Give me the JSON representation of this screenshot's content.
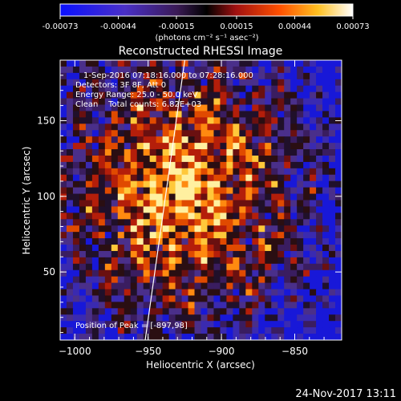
{
  "chart_data": {
    "type": "heatmap",
    "title": "Reconstructed RHESSI Image",
    "xlabel": "Heliocentric X (arcsec)",
    "ylabel": "Heliocentric Y (arcsec)",
    "xlim": [
      -1010,
      -818
    ],
    "ylim": [
      5,
      190
    ],
    "x_ticks": [
      -1000,
      -950,
      -900,
      -850
    ],
    "y_ticks": [
      50,
      100,
      150
    ],
    "colorbar": {
      "ticks": [
        -0.00073,
        -0.00044,
        -0.00015,
        0.00015,
        0.00044,
        0.00073
      ],
      "tick_labels": [
        "-0.00073",
        "-0.00044",
        "-0.00015",
        "0.00015",
        "0.00044",
        "0.00073"
      ],
      "range": [
        -0.00073,
        0.00073
      ],
      "units_label": "(photons cm⁻² s⁻¹ asec⁻²)"
    },
    "annotations": {
      "time": "1-Sep-2016 07:18:16.000 to 07:28:16.000",
      "detectors": "Detectors: 3F 8F, Att 0",
      "energy": "Energy Range: 25.0 - 50.0 keV",
      "clean": "Clean    Total counts: 6.82E+03",
      "peak": "Position of Peak = [-897,98]"
    },
    "limb_line": {
      "x": [
        -952,
        -925
      ],
      "y": [
        5,
        190
      ]
    },
    "grid": false,
    "colormap": "bipolar blue-purple-black-red-orange-yellow-white"
  },
  "footer": {
    "date": "24-Nov-2017 13:11"
  }
}
